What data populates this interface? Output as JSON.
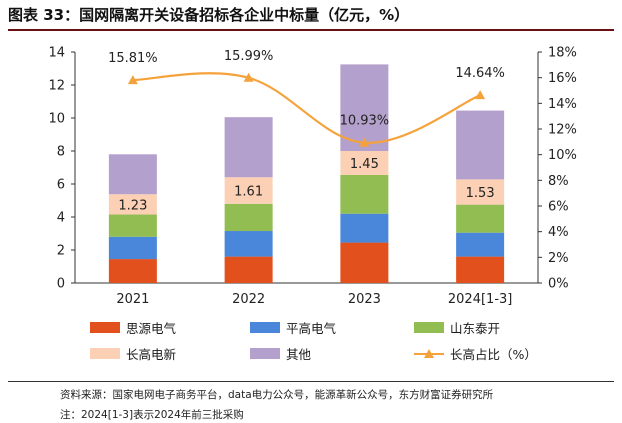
{
  "title": "图表 33：国网隔离开关设备招标各企业中标量（亿元，%）",
  "chart_data": {
    "type": "bar",
    "stacked": true,
    "categories": [
      "2021",
      "2022",
      "2023",
      "2024[1-3]"
    ],
    "series": [
      {
        "name": "思源电气",
        "color": "#e2501d",
        "values": [
          1.45,
          1.6,
          2.45,
          1.6
        ]
      },
      {
        "name": "平高电气",
        "color": "#4a86d9",
        "values": [
          1.35,
          1.55,
          1.75,
          1.45
        ]
      },
      {
        "name": "山东泰开",
        "color": "#91bd52",
        "values": [
          1.35,
          1.65,
          2.35,
          1.7
        ]
      },
      {
        "name": "长高电新",
        "color": "#fbd0b4",
        "values": [
          1.23,
          1.61,
          1.45,
          1.53
        ]
      },
      {
        "name": "其他",
        "color": "#b4a0cc",
        "values": [
          2.42,
          3.64,
          5.25,
          4.17
        ]
      }
    ],
    "line": {
      "name": "长高占比（%）",
      "color": "#f5a23a",
      "values": [
        15.81,
        15.99,
        10.93,
        14.64
      ],
      "labels": [
        "15.81%",
        "15.99%",
        "10.93%",
        "14.64%"
      ]
    },
    "bar_labels": [
      "1.23",
      "1.61",
      "1.45",
      "1.53"
    ],
    "y_left": {
      "min": 0,
      "max": 14,
      "ticks": [
        "0",
        "2",
        "4",
        "6",
        "8",
        "10",
        "12",
        "14"
      ]
    },
    "y_right": {
      "min": 0,
      "max": 18,
      "ticks": [
        "0%",
        "2%",
        "4%",
        "6%",
        "8%",
        "10%",
        "12%",
        "14%",
        "16%",
        "18%"
      ]
    },
    "legend": [
      {
        "name": "思源电气",
        "kind": "bar",
        "color": "#e2501d"
      },
      {
        "name": "平高电气",
        "kind": "bar",
        "color": "#4a86d9"
      },
      {
        "name": "山东泰开",
        "kind": "bar",
        "color": "#91bd52"
      },
      {
        "name": "长高电新",
        "kind": "bar",
        "color": "#fbd0b4"
      },
      {
        "name": "其他",
        "kind": "bar",
        "color": "#b4a0cc"
      },
      {
        "name": "长高占比（%）",
        "kind": "line",
        "color": "#f5a23a"
      }
    ]
  },
  "source": "资料来源：国家电网电子商务平台，data电力公众号，能源革新公众号，东方财富证券研究所",
  "note": "注：2024[1-3]表示2024年前三批采购"
}
